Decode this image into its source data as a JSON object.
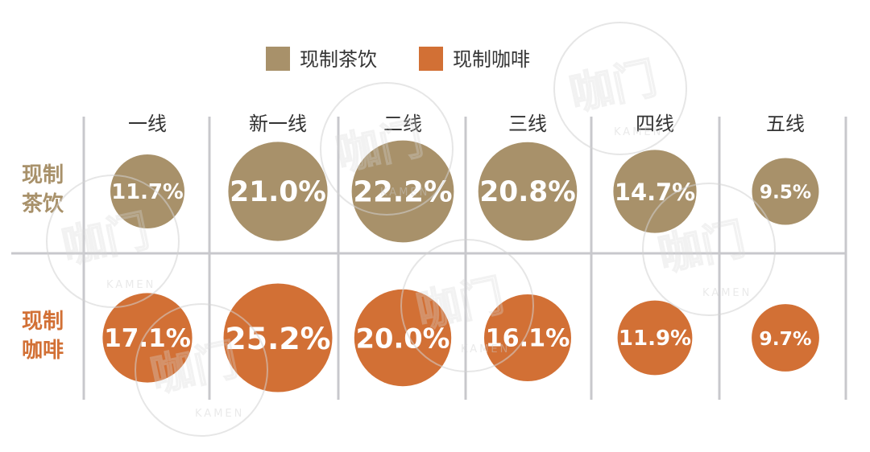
{
  "colors": {
    "tea": "#a8916a",
    "coffee": "#d27035",
    "grid": "#c8c8cc",
    "grid_light": "#dcdcdf",
    "text": "#333333"
  },
  "legend": [
    {
      "label": "现制茶饮",
      "color_key": "tea"
    },
    {
      "label": "现制咖啡",
      "color_key": "coffee"
    }
  ],
  "watermark": {
    "mark": "咖门",
    "latin": "KAMEN"
  },
  "chart_data": {
    "type": "bubble-grid",
    "categories": [
      "一线",
      "新一线",
      "二线",
      "三线",
      "四线",
      "五线"
    ],
    "rows": [
      {
        "label_lines": [
          "现制",
          "茶饮"
        ],
        "series": "现制茶饮",
        "color_key": "tea",
        "unit": "%",
        "values": [
          11.7,
          21.0,
          22.2,
          20.8,
          14.7,
          9.5
        ],
        "display": [
          "11.7%",
          "21.0%",
          "22.2%",
          "20.8%",
          "14.7%",
          "9.5%"
        ]
      },
      {
        "label_lines": [
          "现制",
          "咖啡"
        ],
        "series": "现制咖啡",
        "color_key": "coffee",
        "unit": "%",
        "values": [
          17.1,
          25.2,
          20.0,
          16.1,
          11.9,
          9.7
        ],
        "display": [
          "17.1%",
          "25.2%",
          "20.0%",
          "16.1%",
          "11.9%",
          "9.7%"
        ]
      }
    ]
  }
}
